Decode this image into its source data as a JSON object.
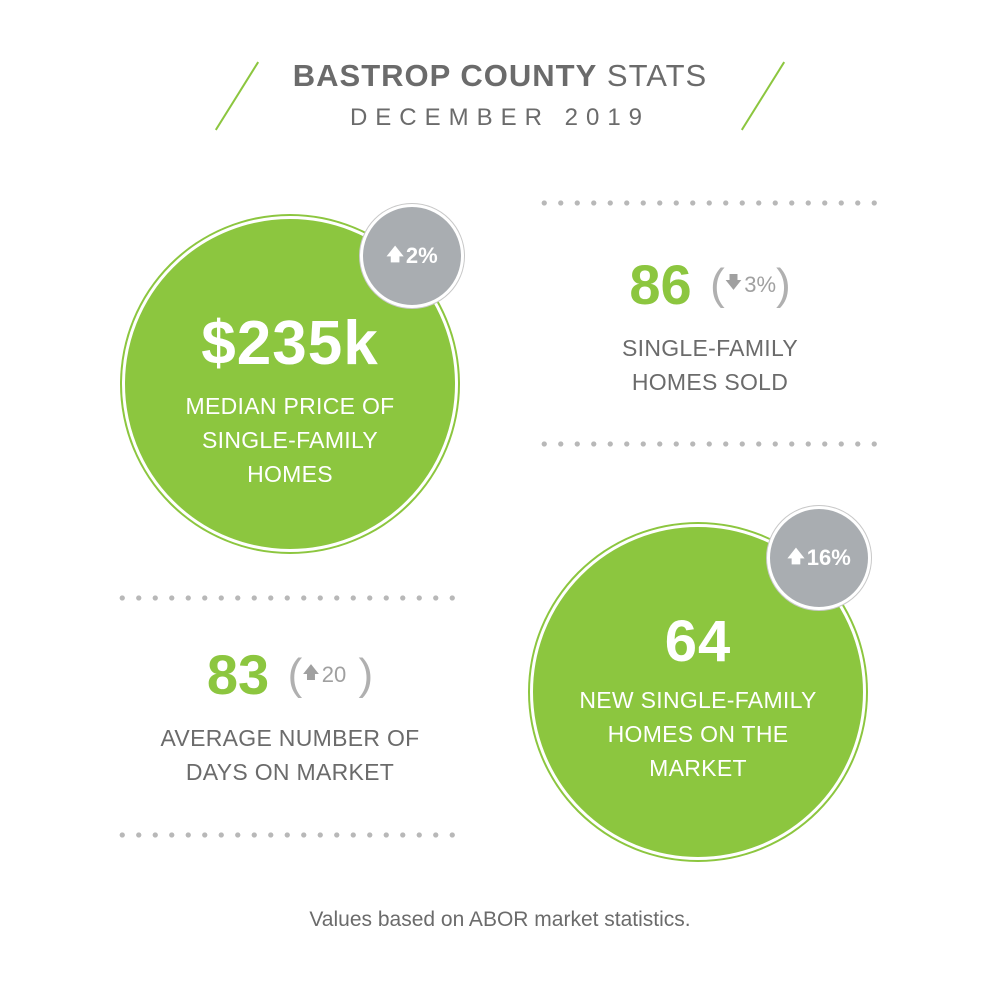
{
  "header": {
    "title_bold": "BASTROP COUNTY",
    "title_rest": "STATS",
    "subtitle": "DECEMBER 2019"
  },
  "median_price": {
    "value": "$235k",
    "label_lines": [
      "MEDIAN PRICE OF",
      "SINGLE-FAMILY",
      "HOMES"
    ],
    "change": "2%",
    "direction_icon": "arrow-up-icon"
  },
  "homes_sold": {
    "value": "86",
    "change": "3%",
    "direction_icon": "arrow-down-icon",
    "label_lines": [
      "SINGLE-FAMILY",
      "HOMES SOLD"
    ]
  },
  "days_on_market": {
    "value": "83",
    "change": "20",
    "direction_icon": "arrow-up-icon",
    "label_lines": [
      "AVERAGE NUMBER OF",
      "DAYS ON MARKET"
    ]
  },
  "new_listings": {
    "value": "64",
    "label_lines": [
      "NEW SINGLE-FAMILY",
      "HOMES ON THE",
      "MARKET"
    ],
    "change": "16%",
    "direction_icon": "arrow-up-icon"
  },
  "footnote": "Values based on ABOR market statistics.",
  "colors": {
    "accent_green": "#8cc63f",
    "badge_gray": "#a9adb1",
    "text_gray": "#6b6b6b"
  }
}
